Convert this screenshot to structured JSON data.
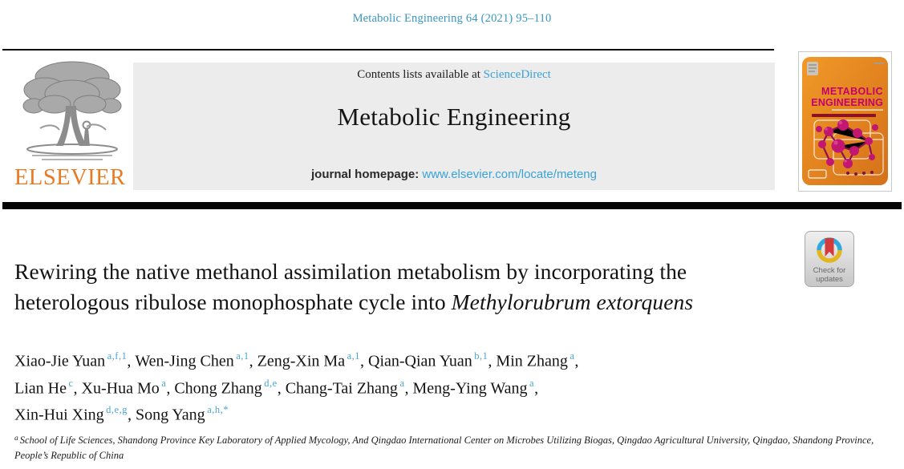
{
  "page": {
    "citation": "Metabolic Engineering 64 (2021) 95–110"
  },
  "banner": {
    "contents_prefix": "Contents lists available at ",
    "sciencedirect": "ScienceDirect",
    "journal_title": "Metabolic Engineering",
    "homepage_prefix": "journal homepage: ",
    "homepage_url": "www.elsevier.com/locate/meteng"
  },
  "elsevier": {
    "wordmark": "ELSEVIER"
  },
  "cover": {
    "title_line1": "METABOLIC",
    "title_line2": "ENGINEERING"
  },
  "badge": {
    "line1": "Check for",
    "line2": "updates"
  },
  "article": {
    "title_line1": "Rewiring the native methanol assimilation metabolism by incorporating the",
    "title_line2_regular": "heterologous ribulose monophosphate cycle into ",
    "title_line2_italic": "Methylorubrum extorquens"
  },
  "authors": {
    "lines": [
      [
        {
          "name": "Xiao-Jie Yuan",
          "sup": "a,f,1"
        },
        {
          "name": "Wen-Jing Chen",
          "sup": "a,1"
        },
        {
          "name": "Zeng-Xin Ma",
          "sup": "a,1"
        },
        {
          "name": "Qian-Qian Yuan",
          "sup": "b,1"
        },
        {
          "name": "Min Zhang",
          "sup": "a"
        }
      ],
      [
        {
          "name": "Lian He",
          "sup": "c"
        },
        {
          "name": "Xu-Hua Mo",
          "sup": "a"
        },
        {
          "name": "Chong Zhang",
          "sup": "d,e"
        },
        {
          "name": "Chang-Tai Zhang",
          "sup": "a"
        },
        {
          "name": "Meng-Ying Wang",
          "sup": "a"
        }
      ],
      [
        {
          "name": "Xin-Hui Xing",
          "sup": "d,e,g"
        },
        {
          "name": "Song Yang",
          "sup": "a,h,*"
        }
      ]
    ]
  },
  "affiliation": {
    "marker": "a",
    "text": "School of Life Sciences, Shandong Province Key Laboratory of Applied Mycology, And Qingdao International Center on Microbes Utilizing Biogas, Qingdao Agricultural University, Qingdao, Shandong Province, People’s Republic of China"
  },
  "colors": {
    "link_blue": "#3AA2D4",
    "citation_blue": "#3796C3",
    "superscript_blue": "#4AA5D2",
    "elsevier_orange": "#E87A22",
    "banner_gray": "#ECECEC",
    "cover_orange": "#E2821F",
    "cover_magenta": "#C4006E",
    "badge_red": "#D6393A",
    "badge_blue": "#2FA8DC",
    "badge_yellow": "#E3B51F",
    "rule_black": "#050505"
  }
}
